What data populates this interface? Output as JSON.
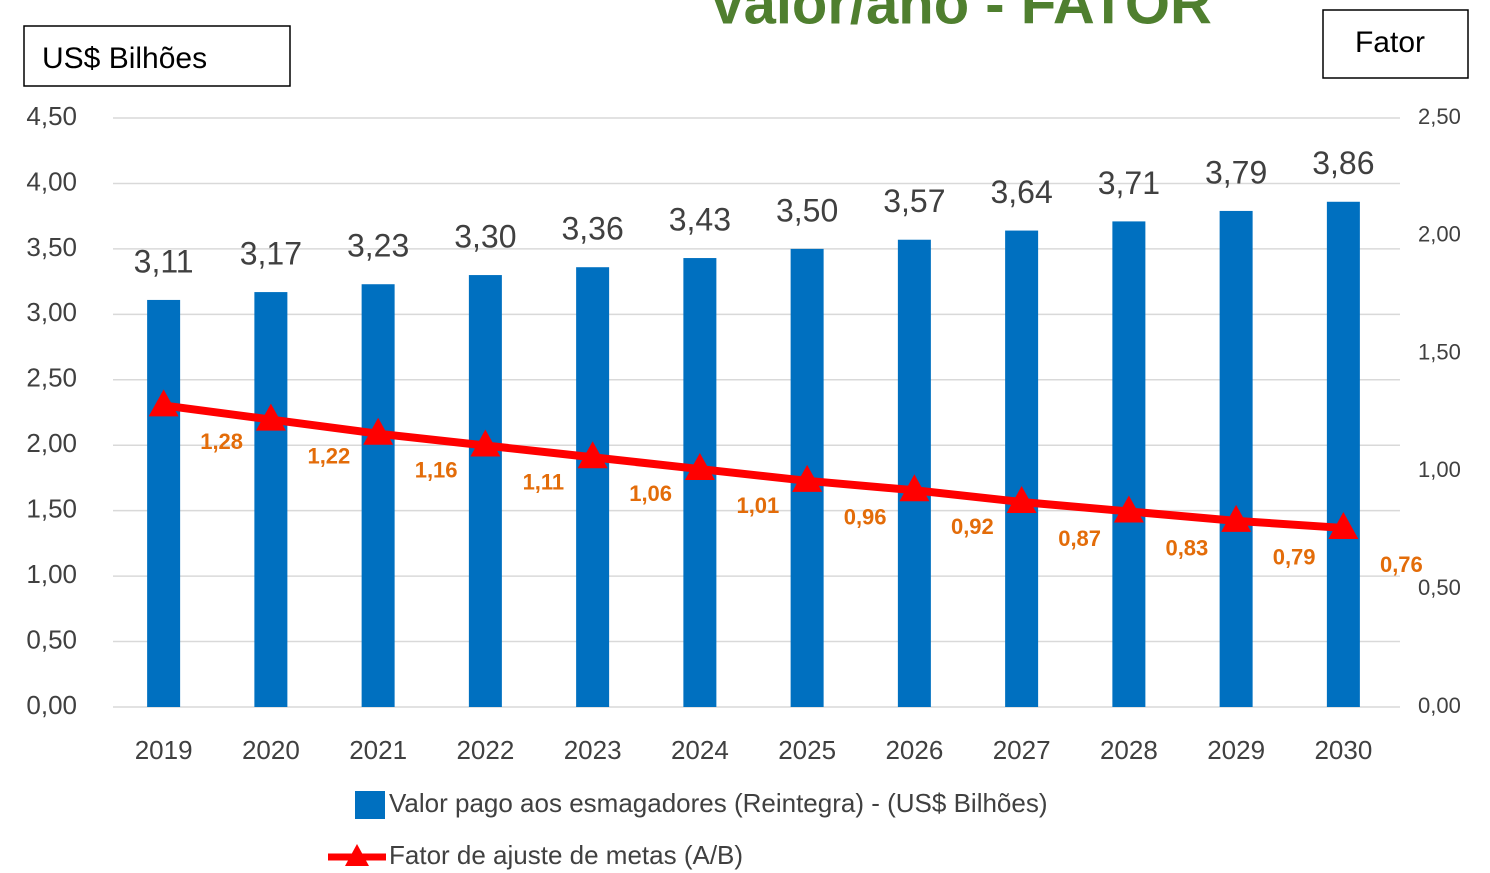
{
  "chart_data": {
    "type": "bar_line",
    "title": "Valor/ano - FATOR",
    "ylabel": "US$ Bilhões",
    "y2label": "Fator",
    "categories": [
      "2019",
      "2020",
      "2021",
      "2022",
      "2023",
      "2024",
      "2025",
      "2026",
      "2027",
      "2028",
      "2029",
      "2030"
    ],
    "series": [
      {
        "name": "Valor pago aos esmagadores (Reintegra) - (US$ Bilhões)",
        "type": "bar",
        "color": "#0070c0",
        "axis": "y",
        "values": [
          3.11,
          3.17,
          3.23,
          3.3,
          3.36,
          3.43,
          3.5,
          3.57,
          3.64,
          3.71,
          3.79,
          3.86
        ],
        "value_labels": [
          "3,11",
          "3,17",
          "3,23",
          "3,30",
          "3,36",
          "3,43",
          "3,50",
          "3,57",
          "3,64",
          "3,71",
          "3,79",
          "3,86"
        ]
      },
      {
        "name": "Fator de ajuste de metas (A/B)",
        "type": "line",
        "color": "#ff0000",
        "axis": "y2",
        "values": [
          1.28,
          1.22,
          1.16,
          1.11,
          1.06,
          1.01,
          0.96,
          0.92,
          0.87,
          0.83,
          0.79,
          0.76
        ],
        "value_labels": [
          "1,28",
          "1,22",
          "1,16",
          "1,11",
          "1,06",
          "1,01",
          "0,96",
          "0,92",
          "0,87",
          "0,83",
          "0,79",
          "0,76"
        ]
      }
    ],
    "ylim": [
      0,
      4.5
    ],
    "yticks": [
      {
        "value": 0,
        "label": "0,00"
      },
      {
        "value": 0.5,
        "label": "0,50"
      },
      {
        "value": 1,
        "label": "1,00"
      },
      {
        "value": 1.5,
        "label": "1,50"
      },
      {
        "value": 2,
        "label": "2,00"
      },
      {
        "value": 2.5,
        "label": "2,50"
      },
      {
        "value": 3,
        "label": "3,00"
      },
      {
        "value": 3.5,
        "label": "3,50"
      },
      {
        "value": 4,
        "label": "4,00"
      },
      {
        "value": 4.5,
        "label": "4,50"
      }
    ],
    "y2lim": [
      0,
      2.5
    ],
    "y2ticks": [
      {
        "value": 0,
        "label": "0,00"
      },
      {
        "value": 0.5,
        "label": "0,50"
      },
      {
        "value": 1,
        "label": "1,00"
      },
      {
        "value": 1.5,
        "label": "1,50"
      },
      {
        "value": 2,
        "label": "2,00"
      },
      {
        "value": 2.5,
        "label": "2,50"
      }
    ],
    "grid": true
  }
}
